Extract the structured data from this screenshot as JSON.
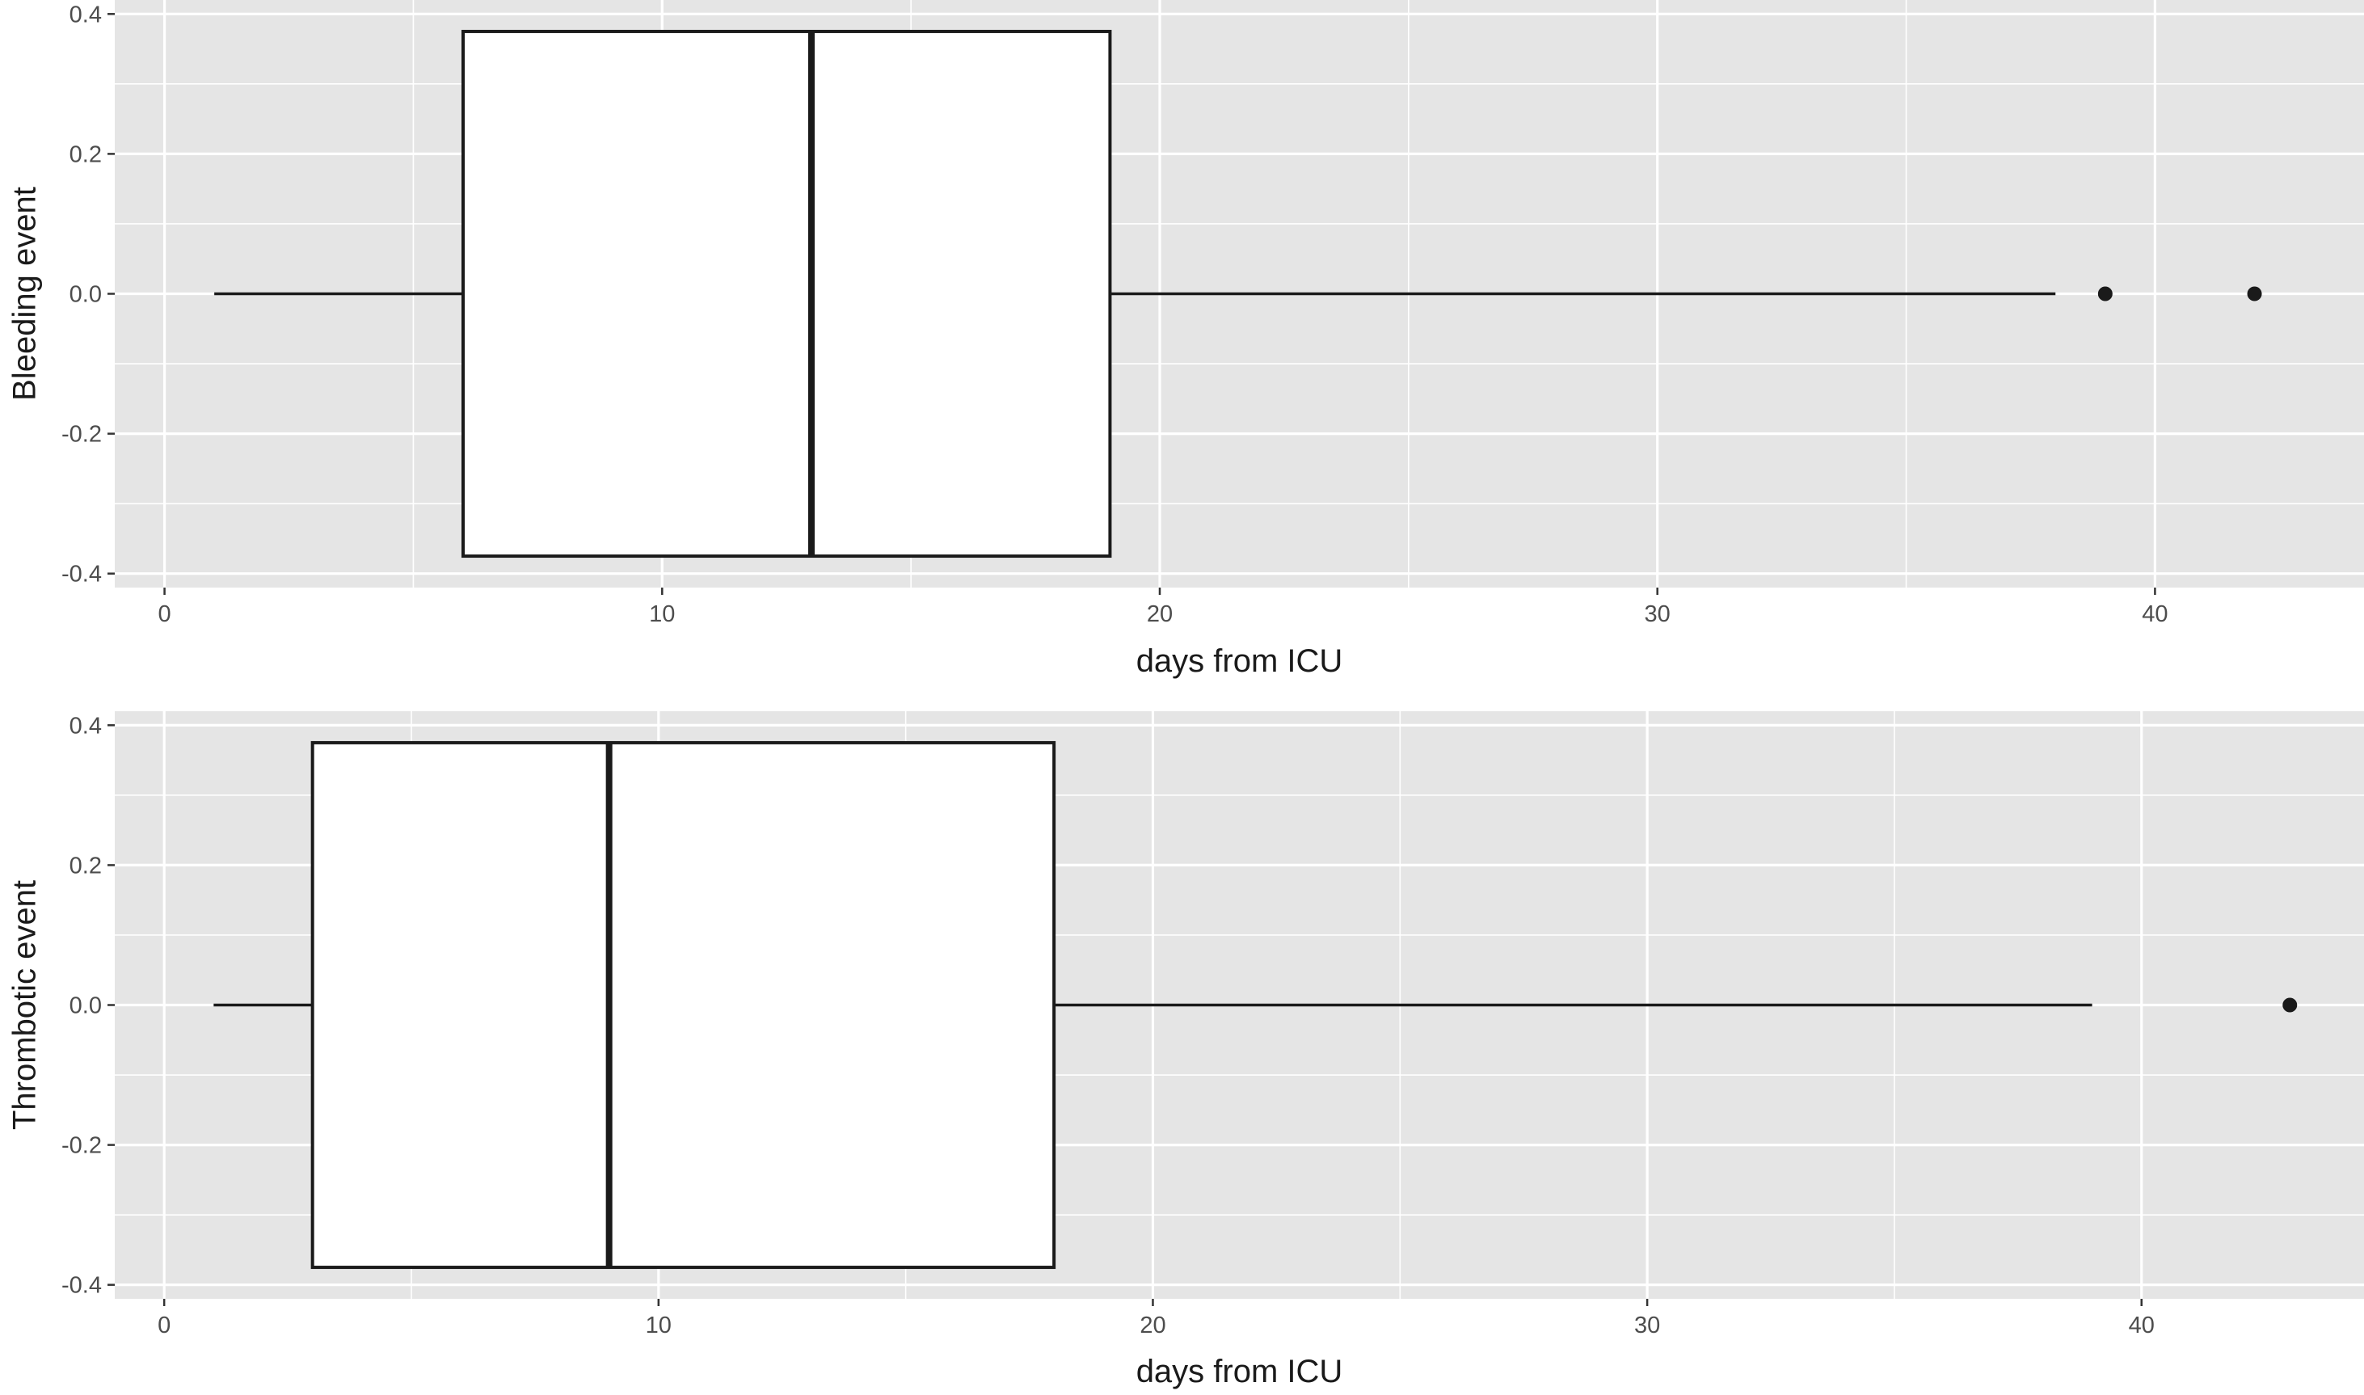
{
  "chart_data": [
    {
      "type": "box",
      "xlabel": "days from ICU",
      "ylabel": "Bleeding event",
      "xlim": [
        -1.0,
        44.2
      ],
      "ylim": [
        -0.42,
        0.42
      ],
      "xticks": [
        0,
        10,
        20,
        30,
        40
      ],
      "xtick_labels": [
        "0",
        "10",
        "20",
        "30",
        "40"
      ],
      "yticks": [
        -0.4,
        -0.2,
        0.0,
        0.2,
        0.4
      ],
      "ytick_labels": [
        "-0.4",
        "-0.2",
        "0.0",
        "0.2",
        "0.4"
      ],
      "grid": true,
      "box": {
        "whisker_low": 1,
        "q1": 6,
        "median": 13,
        "q3": 19,
        "whisker_high": 38,
        "outliers": [
          39,
          42
        ],
        "y_center": 0.0,
        "half_height": 0.375
      }
    },
    {
      "type": "box",
      "xlabel": "days from ICU",
      "ylabel": "Thrombotic event",
      "xlim": [
        -1.0,
        44.5
      ],
      "ylim": [
        -0.42,
        0.42
      ],
      "xticks": [
        0,
        10,
        20,
        30,
        40
      ],
      "xtick_labels": [
        "0",
        "10",
        "20",
        "30",
        "40"
      ],
      "yticks": [
        -0.4,
        -0.2,
        0.0,
        0.2,
        0.4
      ],
      "ytick_labels": [
        "-0.4",
        "-0.2",
        "0.0",
        "0.2",
        "0.4"
      ],
      "grid": true,
      "box": {
        "whisker_low": 1,
        "q1": 3,
        "median": 9,
        "q3": 18,
        "whisker_high": 39,
        "outliers": [
          43
        ],
        "y_center": 0.0,
        "half_height": 0.375
      }
    }
  ],
  "colors": {
    "panel_background": "#e5e5e5",
    "grid": "#ffffff",
    "box_fill": "#ffffff",
    "box_stroke": "#1a1a1a",
    "tick_text": "#4d4d4d",
    "title_text": "#1a1a1a"
  }
}
